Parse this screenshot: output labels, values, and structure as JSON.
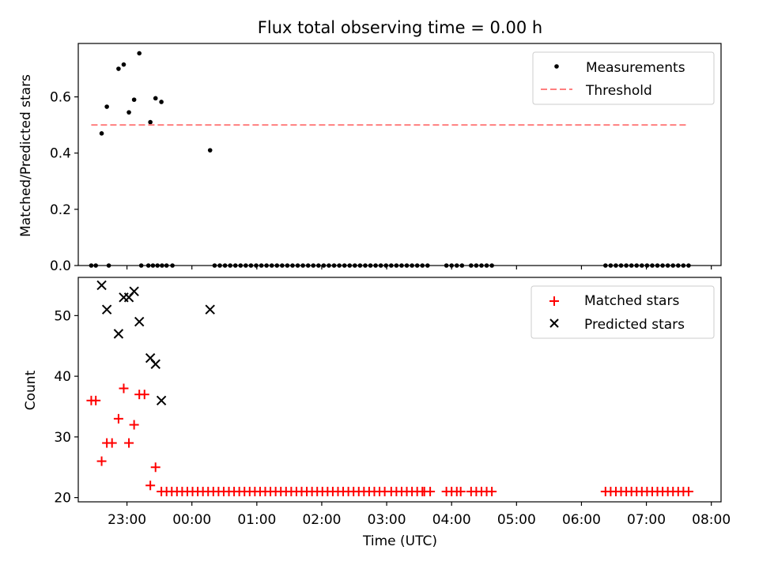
{
  "chart_data": [
    {
      "type": "scatter",
      "title": "Flux total observing time = 0.00 h",
      "xlabel": "",
      "ylabel": "Matched/Predicted stars",
      "xlim": [
        -1.75,
        8.15
      ],
      "ylim": [
        0,
        0.79
      ],
      "yticks": [
        0.0,
        0.2,
        0.4,
        0.6
      ],
      "ytick_labels": [
        "0.0",
        "0.2",
        "0.4",
        "0.6"
      ],
      "legend_position": "top-right",
      "series": [
        {
          "name": "Measurements",
          "marker": "dot",
          "color": "#000000",
          "points": [
            [
              -1.55,
              0
            ],
            [
              -1.48,
              0
            ],
            [
              -1.28,
              0
            ],
            [
              -0.78,
              0
            ],
            [
              -0.67,
              0
            ],
            [
              -0.6,
              0
            ],
            [
              -0.53,
              0
            ],
            [
              -0.46,
              0
            ],
            [
              -0.39,
              0
            ],
            [
              -0.3,
              0
            ],
            [
              0.35,
              0
            ],
            [
              0.43,
              0
            ],
            [
              0.51,
              0
            ],
            [
              0.59,
              0
            ],
            [
              0.67,
              0
            ],
            [
              0.75,
              0
            ],
            [
              0.83,
              0
            ],
            [
              0.91,
              0
            ],
            [
              0.99,
              0
            ],
            [
              1.07,
              0
            ],
            [
              1.15,
              0
            ],
            [
              1.23,
              0
            ],
            [
              1.31,
              0
            ],
            [
              1.39,
              0
            ],
            [
              1.47,
              0
            ],
            [
              1.55,
              0
            ],
            [
              1.63,
              0
            ],
            [
              1.71,
              0
            ],
            [
              1.79,
              0
            ],
            [
              1.87,
              0
            ],
            [
              1.95,
              0
            ],
            [
              2.03,
              0
            ],
            [
              2.11,
              0
            ],
            [
              2.19,
              0
            ],
            [
              2.27,
              0
            ],
            [
              2.35,
              0
            ],
            [
              2.43,
              0
            ],
            [
              2.51,
              0
            ],
            [
              2.59,
              0
            ],
            [
              2.67,
              0
            ],
            [
              2.75,
              0
            ],
            [
              2.83,
              0
            ],
            [
              2.91,
              0
            ],
            [
              2.99,
              0
            ],
            [
              3.07,
              0
            ],
            [
              3.15,
              0
            ],
            [
              3.23,
              0
            ],
            [
              3.31,
              0
            ],
            [
              3.39,
              0
            ],
            [
              3.47,
              0
            ],
            [
              3.55,
              0
            ],
            [
              3.63,
              0
            ],
            [
              3.92,
              0
            ],
            [
              4.0,
              0
            ],
            [
              4.08,
              0
            ],
            [
              4.16,
              0
            ],
            [
              4.3,
              0
            ],
            [
              4.38,
              0
            ],
            [
              4.46,
              0
            ],
            [
              4.54,
              0
            ],
            [
              4.62,
              0
            ],
            [
              6.37,
              0
            ],
            [
              6.45,
              0
            ],
            [
              6.53,
              0
            ],
            [
              6.61,
              0
            ],
            [
              6.69,
              0
            ],
            [
              6.77,
              0
            ],
            [
              6.85,
              0
            ],
            [
              6.93,
              0
            ],
            [
              7.01,
              0
            ],
            [
              7.09,
              0
            ],
            [
              7.17,
              0
            ],
            [
              7.25,
              0
            ],
            [
              7.33,
              0
            ],
            [
              7.41,
              0
            ],
            [
              7.49,
              0
            ],
            [
              7.57,
              0
            ],
            [
              7.65,
              0
            ],
            [
              -1.39,
              0.47
            ],
            [
              -1.31,
              0.565
            ],
            [
              -1.13,
              0.7
            ],
            [
              -1.05,
              0.715
            ],
            [
              -0.97,
              0.545
            ],
            [
              -0.89,
              0.59
            ],
            [
              -0.81,
              0.755
            ],
            [
              -0.64,
              0.51
            ],
            [
              -0.56,
              0.595
            ],
            [
              -0.47,
              0.582
            ],
            [
              0.28,
              0.41
            ]
          ]
        },
        {
          "name": "Threshold",
          "marker": "dashed-line",
          "color": "#ff7f7f",
          "points": [
            [
              -1.55,
              0.5
            ],
            [
              7.65,
              0.5
            ]
          ]
        }
      ]
    },
    {
      "type": "scatter",
      "title": "",
      "xlabel": "Time (UTC)",
      "ylabel": "Count",
      "xlim": [
        -1.75,
        8.15
      ],
      "ylim": [
        19.3,
        56.3
      ],
      "yticks": [
        20,
        30,
        40,
        50
      ],
      "ytick_labels": [
        "20",
        "30",
        "40",
        "50"
      ],
      "xticks": [
        -1,
        0,
        1,
        2,
        3,
        4,
        5,
        6,
        7,
        8
      ],
      "xtick_labels": [
        "23:00",
        "00:00",
        "01:00",
        "02:00",
        "03:00",
        "04:00",
        "05:00",
        "06:00",
        "07:00",
        "08:00"
      ],
      "legend_position": "top-right",
      "series": [
        {
          "name": "Matched stars",
          "marker": "plus",
          "color": "#ff0000",
          "points": [
            [
              -1.55,
              36
            ],
            [
              -1.48,
              36
            ],
            [
              -1.39,
              26
            ],
            [
              -1.31,
              29
            ],
            [
              -1.23,
              29
            ],
            [
              -1.13,
              33
            ],
            [
              -1.05,
              38
            ],
            [
              -0.97,
              29
            ],
            [
              -0.89,
              32
            ],
            [
              -0.81,
              37
            ],
            [
              -0.73,
              37
            ],
            [
              -0.64,
              22
            ],
            [
              -0.56,
              25
            ],
            [
              -0.47,
              21
            ],
            [
              -0.39,
              21
            ],
            [
              -0.31,
              21
            ],
            [
              -0.23,
              21
            ],
            [
              -0.15,
              21
            ],
            [
              -0.07,
              21
            ],
            [
              0.01,
              21
            ],
            [
              0.09,
              21
            ],
            [
              0.17,
              21
            ],
            [
              0.25,
              21
            ],
            [
              0.33,
              21
            ],
            [
              0.41,
              21
            ],
            [
              0.49,
              21
            ],
            [
              0.57,
              21
            ],
            [
              0.65,
              21
            ],
            [
              0.73,
              21
            ],
            [
              0.81,
              21
            ],
            [
              0.89,
              21
            ],
            [
              0.97,
              21
            ],
            [
              1.05,
              21
            ],
            [
              1.13,
              21
            ],
            [
              1.21,
              21
            ],
            [
              1.29,
              21
            ],
            [
              1.37,
              21
            ],
            [
              1.45,
              21
            ],
            [
              1.53,
              21
            ],
            [
              1.61,
              21
            ],
            [
              1.69,
              21
            ],
            [
              1.77,
              21
            ],
            [
              1.85,
              21
            ],
            [
              1.93,
              21
            ],
            [
              2.01,
              21
            ],
            [
              2.09,
              21
            ],
            [
              2.17,
              21
            ],
            [
              2.25,
              21
            ],
            [
              2.33,
              21
            ],
            [
              2.41,
              21
            ],
            [
              2.49,
              21
            ],
            [
              2.57,
              21
            ],
            [
              2.65,
              21
            ],
            [
              2.73,
              21
            ],
            [
              2.81,
              21
            ],
            [
              2.89,
              21
            ],
            [
              2.97,
              21
            ],
            [
              3.07,
              21
            ],
            [
              3.15,
              21
            ],
            [
              3.23,
              21
            ],
            [
              3.31,
              21
            ],
            [
              3.39,
              21
            ],
            [
              3.47,
              21
            ],
            [
              3.55,
              21
            ],
            [
              3.58,
              21
            ],
            [
              3.67,
              21
            ],
            [
              3.92,
              21
            ],
            [
              4.0,
              21
            ],
            [
              4.08,
              21
            ],
            [
              4.14,
              21
            ],
            [
              4.3,
              21
            ],
            [
              4.38,
              21
            ],
            [
              4.46,
              21
            ],
            [
              4.54,
              21
            ],
            [
              4.62,
              21
            ],
            [
              6.37,
              21
            ],
            [
              6.45,
              21
            ],
            [
              6.53,
              21
            ],
            [
              6.61,
              21
            ],
            [
              6.69,
              21
            ],
            [
              6.77,
              21
            ],
            [
              6.85,
              21
            ],
            [
              6.93,
              21
            ],
            [
              7.01,
              21
            ],
            [
              7.09,
              21
            ],
            [
              7.17,
              21
            ],
            [
              7.25,
              21
            ],
            [
              7.33,
              21
            ],
            [
              7.41,
              21
            ],
            [
              7.49,
              21
            ],
            [
              7.57,
              21
            ],
            [
              7.65,
              21
            ]
          ]
        },
        {
          "name": "Predicted stars",
          "marker": "x",
          "color": "#000000",
          "points": [
            [
              -1.39,
              55
            ],
            [
              -1.31,
              51
            ],
            [
              -1.13,
              47
            ],
            [
              -1.05,
              53
            ],
            [
              -0.97,
              53
            ],
            [
              -0.89,
              54
            ],
            [
              -0.81,
              49
            ],
            [
              -0.64,
              43
            ],
            [
              -0.56,
              42
            ],
            [
              -0.47,
              36
            ],
            [
              0.28,
              51
            ]
          ]
        }
      ]
    }
  ]
}
